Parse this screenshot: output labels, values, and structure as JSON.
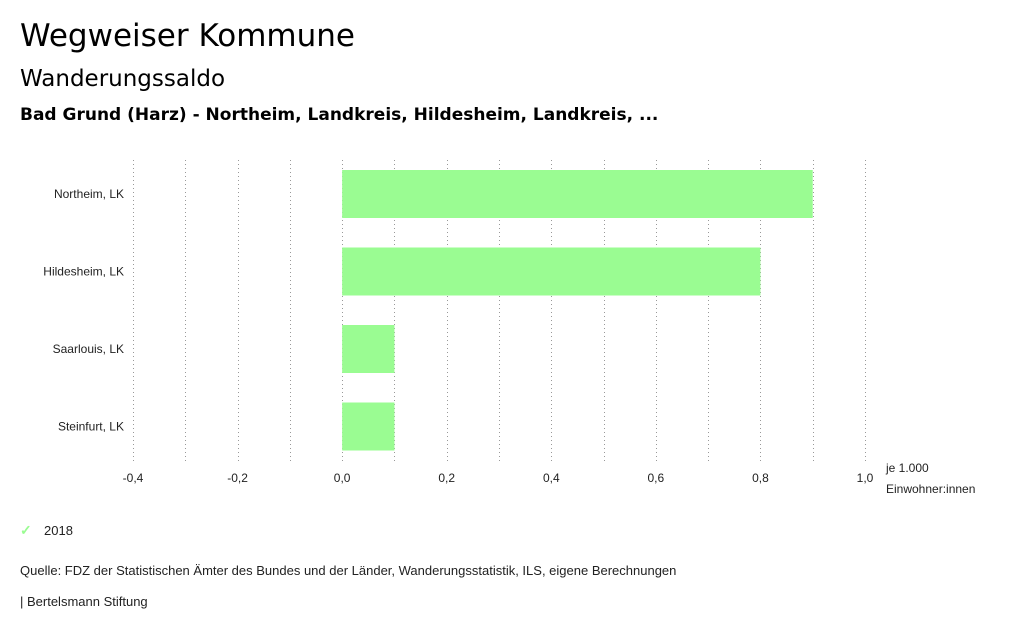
{
  "header": {
    "title": "Wegweiser Kommune",
    "subtitle": "Wanderungssaldo",
    "region": "Bad Grund (Harz) - Northeim, Landkreis, Hildesheim, Landkreis, ..."
  },
  "chart_data": {
    "type": "bar",
    "orientation": "horizontal",
    "categories": [
      "Northeim, LK",
      "Hildesheim, LK",
      "Saarlouis, LK",
      "Steinfurt, LK"
    ],
    "series": [
      {
        "name": "2018",
        "values": [
          0.9,
          0.8,
          0.1,
          0.1
        ]
      }
    ],
    "xlim": [
      -0.4,
      1.0
    ],
    "xticks": [
      -0.4,
      -0.2,
      0.0,
      0.2,
      0.4,
      0.6,
      0.8,
      1.0
    ],
    "xtick_labels": [
      "-0,4",
      "-0,2",
      "0,0",
      "0,2",
      "0,4",
      "0,6",
      "0,8",
      "1,0"
    ],
    "unit_label_line1": "je 1.000",
    "unit_label_line2": "Einwohner:innen",
    "grid": true,
    "bar_color": "#9afc92"
  },
  "legend": {
    "label": "2018",
    "color": "#9afc92"
  },
  "footer": {
    "source": "Quelle: FDZ der Statistischen Ämter des Bundes und der Länder, Wanderungsstatistik, ILS, eigene Berechnungen",
    "publisher": "| Bertelsmann Stiftung"
  }
}
